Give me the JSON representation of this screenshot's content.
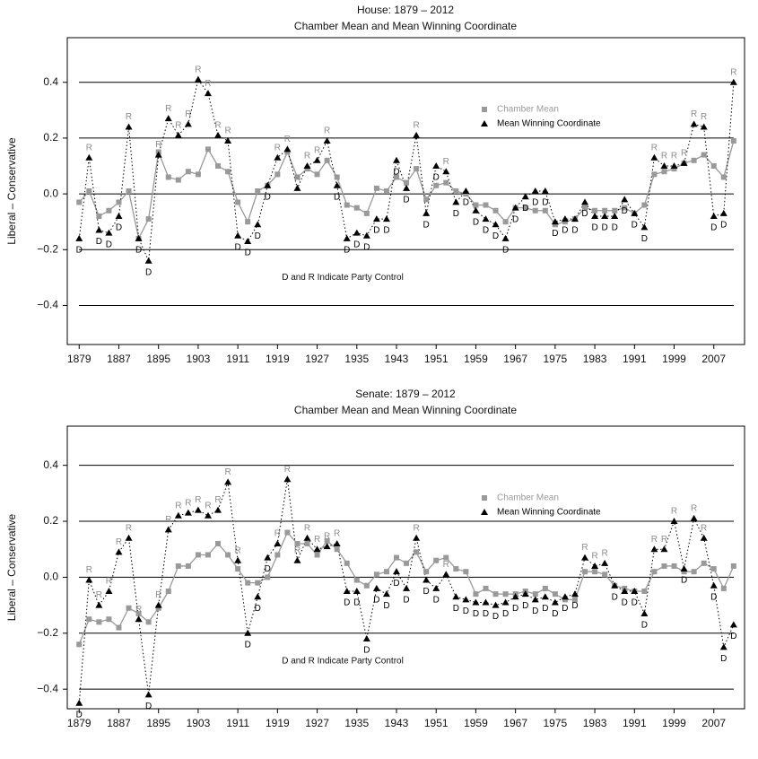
{
  "chart_data": [
    {
      "type": "line",
      "title": "House: 1879 – 2012",
      "subtitle": "Chamber Mean and Mean Winning Coordinate",
      "y_label": "Liberal – Conservative",
      "annotation": "D and R Indicate Party Control",
      "x": [
        1879,
        1881,
        1883,
        1885,
        1887,
        1889,
        1891,
        1893,
        1895,
        1897,
        1899,
        1901,
        1903,
        1905,
        1907,
        1909,
        1911,
        1913,
        1915,
        1917,
        1919,
        1921,
        1923,
        1925,
        1927,
        1929,
        1931,
        1933,
        1935,
        1937,
        1939,
        1941,
        1943,
        1945,
        1947,
        1949,
        1951,
        1953,
        1955,
        1957,
        1959,
        1961,
        1963,
        1965,
        1967,
        1969,
        1971,
        1973,
        1975,
        1977,
        1979,
        1981,
        1983,
        1985,
        1987,
        1989,
        1991,
        1993,
        1995,
        1997,
        1999,
        2001,
        2003,
        2005,
        2007,
        2009,
        2011
      ],
      "xlim": [
        1876.6,
        2013.2
      ],
      "xticks": [
        1879,
        1887,
        1895,
        1903,
        1911,
        1919,
        1927,
        1935,
        1943,
        1951,
        1959,
        1967,
        1975,
        1983,
        1991,
        1999,
        2007
      ],
      "ylim": [
        -0.54,
        0.56
      ],
      "yticks": [
        {
          "value": -0.4,
          "label": "−0.4"
        },
        {
          "value": -0.2,
          "label": "−0.2"
        },
        {
          "value": 0,
          "label": "0.0"
        },
        0.2,
        0.4
      ],
      "grid": true,
      "series": [
        {
          "name": "Chamber Mean",
          "color": "#999999",
          "values": [
            -0.03,
            0.01,
            -0.08,
            -0.06,
            -0.03,
            0.01,
            -0.16,
            -0.09,
            0.15,
            0.06,
            0.05,
            0.08,
            0.07,
            0.16,
            0.1,
            0.08,
            -0.03,
            -0.1,
            0.01,
            0.03,
            0.07,
            0.15,
            0.06,
            0.09,
            0.07,
            0.12,
            0.06,
            -0.04,
            -0.05,
            -0.07,
            0.02,
            0.01,
            0.06,
            0.04,
            0.09,
            -0.02,
            0.03,
            0.04,
            0.01,
            0.0,
            -0.04,
            -0.04,
            -0.06,
            -0.1,
            -0.05,
            -0.05,
            -0.06,
            -0.06,
            -0.11,
            -0.1,
            -0.09,
            -0.05,
            -0.06,
            -0.06,
            -0.06,
            -0.05,
            -0.07,
            -0.04,
            0.07,
            0.08,
            0.09,
            0.11,
            0.12,
            0.14,
            0.1,
            0.06,
            0.19
          ]
        },
        {
          "name": "Mean Winning Coordinate",
          "color": "#000000",
          "values": [
            -0.16,
            0.13,
            -0.13,
            -0.14,
            -0.08,
            0.24,
            -0.16,
            -0.24,
            0.14,
            0.27,
            0.21,
            0.25,
            0.41,
            0.36,
            0.21,
            0.19,
            -0.15,
            -0.17,
            -0.11,
            0.03,
            0.13,
            0.16,
            0.02,
            0.1,
            0.12,
            0.19,
            0.03,
            -0.16,
            -0.14,
            -0.15,
            -0.09,
            -0.09,
            0.12,
            0.02,
            0.21,
            -0.07,
            0.1,
            0.08,
            -0.03,
            0.01,
            -0.06,
            -0.09,
            -0.11,
            -0.16,
            -0.05,
            -0.01,
            0.01,
            0.01,
            -0.1,
            -0.09,
            -0.09,
            -0.03,
            -0.08,
            -0.08,
            -0.08,
            -0.02,
            -0.07,
            -0.12,
            0.13,
            0.1,
            0.1,
            0.11,
            0.25,
            0.24,
            -0.08,
            -0.07,
            0.4
          ],
          "point_labels": [
            "D",
            "R",
            "D",
            "D",
            "D",
            "R",
            "D",
            "D",
            "R",
            "R",
            "R",
            "R",
            "R",
            "R",
            "R",
            "R",
            "D",
            "D",
            "D",
            "D",
            "R",
            "R",
            "R",
            "R",
            "R",
            "R",
            "D",
            "D",
            "D",
            "D",
            "D",
            "D",
            "D",
            "D",
            "R",
            "D",
            "D",
            "R",
            "D",
            "D",
            "D",
            "D",
            "D",
            "D",
            "D",
            "D",
            "D",
            "D",
            "D",
            "D",
            "D",
            "D",
            "D",
            "D",
            "D",
            "D",
            "D",
            "D",
            "R",
            "R",
            "R",
            "R",
            "R",
            "R",
            "D",
            "D",
            "R"
          ]
        }
      ]
    },
    {
      "type": "line",
      "title": "Senate: 1879 – 2012",
      "subtitle": "Chamber Mean and Mean Winning Coordinate",
      "y_label": "Liberal – Conservative",
      "annotation": "D and R Indicate Party Control",
      "x": [
        1879,
        1881,
        1883,
        1885,
        1887,
        1889,
        1891,
        1893,
        1895,
        1897,
        1899,
        1901,
        1903,
        1905,
        1907,
        1909,
        1911,
        1913,
        1915,
        1917,
        1919,
        1921,
        1923,
        1925,
        1927,
        1929,
        1931,
        1933,
        1935,
        1937,
        1939,
        1941,
        1943,
        1945,
        1947,
        1949,
        1951,
        1953,
        1955,
        1957,
        1959,
        1961,
        1963,
        1965,
        1967,
        1969,
        1971,
        1973,
        1975,
        1977,
        1979,
        1981,
        1983,
        1985,
        1987,
        1989,
        1991,
        1993,
        1995,
        1997,
        1999,
        2001,
        2003,
        2005,
        2007,
        2009,
        2011
      ],
      "xlim": [
        1876.6,
        2013.2
      ],
      "xticks": [
        1879,
        1887,
        1895,
        1903,
        1911,
        1919,
        1927,
        1935,
        1943,
        1951,
        1959,
        1967,
        1975,
        1983,
        1991,
        1999,
        2007
      ],
      "ylim": [
        -0.47,
        0.54
      ],
      "yticks": [
        {
          "value": -0.4,
          "label": "−0.4"
        },
        {
          "value": -0.2,
          "label": "−0.2"
        },
        {
          "value": 0,
          "label": "0.0"
        },
        0.2,
        0.4
      ],
      "grid": true,
      "series": [
        {
          "name": "Chamber Mean",
          "color": "#999999",
          "values": [
            -0.24,
            -0.15,
            -0.16,
            -0.15,
            -0.18,
            -0.11,
            -0.13,
            -0.16,
            -0.11,
            -0.05,
            0.04,
            0.04,
            0.08,
            0.08,
            0.12,
            0.08,
            0.03,
            -0.02,
            -0.02,
            0.0,
            0.08,
            0.16,
            0.12,
            0.12,
            0.08,
            0.13,
            0.1,
            0.05,
            -0.01,
            -0.03,
            0.01,
            0.02,
            0.07,
            0.05,
            0.09,
            0.02,
            0.06,
            0.07,
            0.03,
            0.02,
            -0.06,
            -0.04,
            -0.06,
            -0.06,
            -0.06,
            -0.05,
            -0.06,
            -0.04,
            -0.06,
            -0.08,
            -0.08,
            0.02,
            0.02,
            0.01,
            -0.03,
            -0.04,
            -0.05,
            -0.05,
            0.02,
            0.04,
            0.04,
            0.02,
            0.02,
            0.05,
            0.03,
            -0.04,
            0.04
          ]
        },
        {
          "name": "Mean Winning Coordinate",
          "color": "#000000",
          "values": [
            -0.45,
            -0.01,
            -0.1,
            -0.05,
            0.09,
            0.14,
            -0.15,
            -0.42,
            -0.1,
            0.17,
            0.22,
            0.23,
            0.24,
            0.22,
            0.24,
            0.34,
            0.06,
            -0.2,
            -0.07,
            0.07,
            0.12,
            0.35,
            0.06,
            0.14,
            0.1,
            0.11,
            0.12,
            -0.05,
            -0.05,
            -0.22,
            -0.04,
            -0.06,
            0.02,
            -0.04,
            0.14,
            -0.01,
            -0.04,
            0.01,
            -0.07,
            -0.08,
            -0.09,
            -0.09,
            -0.1,
            -0.09,
            -0.07,
            -0.06,
            -0.08,
            -0.07,
            -0.09,
            -0.07,
            -0.06,
            0.07,
            0.04,
            0.05,
            -0.03,
            -0.05,
            -0.05,
            -0.13,
            0.1,
            0.1,
            0.2,
            0.03,
            0.21,
            0.14,
            -0.03,
            -0.25,
            -0.17
          ],
          "point_labels": [
            "D",
            "R",
            "R",
            "R",
            "R",
            "R",
            "R",
            "D",
            "R",
            "R",
            "R",
            "R",
            "R",
            "R",
            "R",
            "R",
            "R",
            "D",
            "D",
            "D",
            "R",
            "R",
            "R",
            "R",
            "R",
            "R",
            "R",
            "D",
            "D",
            "D",
            "D",
            "D",
            "D",
            "D",
            "R",
            "D",
            "D",
            "R",
            "D",
            "D",
            "D",
            "D",
            "D",
            "D",
            "D",
            "D",
            "D",
            "D",
            "D",
            "D",
            "D",
            "R",
            "R",
            "R",
            "D",
            "D",
            "D",
            "D",
            "R",
            "R",
            "R",
            "D",
            "R",
            "R",
            "D",
            "D",
            "D"
          ]
        }
      ]
    }
  ]
}
